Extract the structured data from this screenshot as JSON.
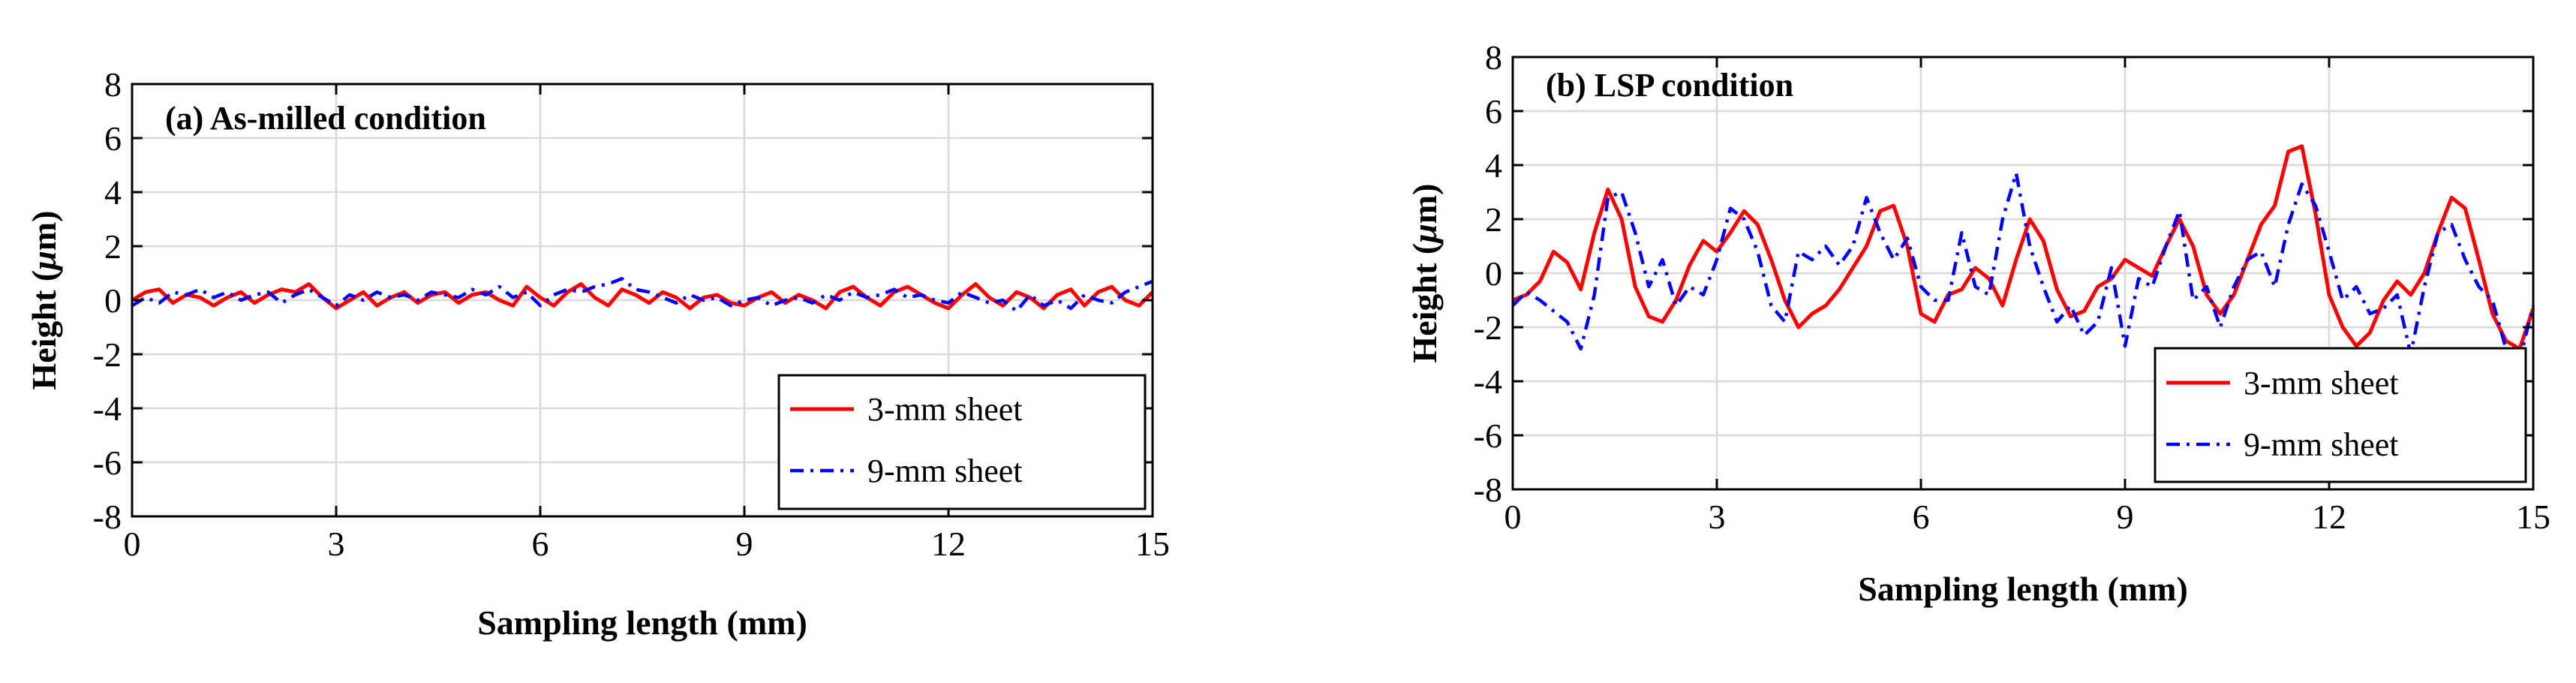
{
  "chart_data": [
    {
      "type": "line",
      "title": "(a) As-milled condition",
      "xlabel": "Sampling length (mm)",
      "ylabel_prefix": "Height (",
      "ylabel_mu": "μ",
      "ylabel_suffix": "m)",
      "xlim": [
        0,
        15
      ],
      "ylim": [
        -8,
        8
      ],
      "xticks": [
        0,
        3,
        6,
        9,
        12,
        15
      ],
      "yticks": [
        -8,
        -6,
        -4,
        -2,
        0,
        2,
        4,
        6,
        8
      ],
      "xtick_labels": [
        "0",
        "3",
        "6",
        "9",
        "12",
        "15"
      ],
      "ytick_labels": [
        "-8",
        "-6",
        "-4",
        "-2",
        "0",
        "2",
        "4",
        "6",
        "8"
      ],
      "grid": true,
      "legend_position": "bottom-right",
      "series": [
        {
          "name": "3-mm sheet",
          "color": "#ff0000",
          "style": "solid",
          "x": [
            0,
            0.2,
            0.4,
            0.6,
            0.8,
            1.0,
            1.2,
            1.4,
            1.6,
            1.8,
            2.0,
            2.2,
            2.4,
            2.6,
            2.8,
            3.0,
            3.2,
            3.4,
            3.6,
            3.8,
            4.0,
            4.2,
            4.4,
            4.6,
            4.8,
            5.0,
            5.2,
            5.4,
            5.6,
            5.8,
            6.0,
            6.2,
            6.4,
            6.6,
            6.8,
            7.0,
            7.2,
            7.4,
            7.6,
            7.8,
            8.0,
            8.2,
            8.4,
            8.6,
            8.8,
            9.0,
            9.2,
            9.4,
            9.6,
            9.8,
            10.0,
            10.2,
            10.4,
            10.6,
            10.8,
            11.0,
            11.2,
            11.4,
            11.6,
            11.8,
            12.0,
            12.2,
            12.4,
            12.6,
            12.8,
            13.0,
            13.2,
            13.4,
            13.6,
            13.8,
            14.0,
            14.2,
            14.4,
            14.6,
            14.8,
            15.0
          ],
          "y": [
            0.0,
            0.3,
            0.4,
            -0.1,
            0.2,
            0.1,
            -0.2,
            0.1,
            0.3,
            -0.1,
            0.2,
            0.4,
            0.3,
            0.6,
            0.1,
            -0.3,
            0.0,
            0.3,
            -0.2,
            0.1,
            0.3,
            -0.1,
            0.2,
            0.3,
            -0.1,
            0.2,
            0.3,
            0.0,
            -0.2,
            0.5,
            0.1,
            -0.2,
            0.3,
            0.6,
            0.1,
            -0.2,
            0.4,
            0.2,
            -0.1,
            0.3,
            0.1,
            -0.3,
            0.1,
            0.2,
            -0.1,
            -0.2,
            0.1,
            0.3,
            -0.1,
            0.2,
            0.0,
            -0.3,
            0.3,
            0.5,
            0.1,
            -0.2,
            0.3,
            0.5,
            0.2,
            -0.1,
            -0.3,
            0.2,
            0.6,
            0.1,
            -0.2,
            0.3,
            0.1,
            -0.3,
            0.2,
            0.4,
            -0.2,
            0.3,
            0.5,
            0.0,
            -0.2,
            0.3
          ]
        },
        {
          "name": "9-mm sheet",
          "color": "#0000ff",
          "style": "dashdot",
          "x": [
            0,
            0.2,
            0.4,
            0.6,
            0.8,
            1.0,
            1.2,
            1.4,
            1.6,
            1.8,
            2.0,
            2.2,
            2.4,
            2.6,
            2.8,
            3.0,
            3.2,
            3.4,
            3.6,
            3.8,
            4.0,
            4.2,
            4.4,
            4.6,
            4.8,
            5.0,
            5.2,
            5.4,
            5.6,
            5.8,
            6.0,
            6.2,
            6.4,
            6.6,
            6.8,
            7.0,
            7.2,
            7.4,
            7.6,
            7.8,
            8.0,
            8.2,
            8.4,
            8.6,
            8.8,
            9.0,
            9.2,
            9.4,
            9.6,
            9.8,
            10.0,
            10.2,
            10.4,
            10.6,
            10.8,
            11.0,
            11.2,
            11.4,
            11.6,
            11.8,
            12.0,
            12.2,
            12.4,
            12.6,
            12.8,
            13.0,
            13.2,
            13.4,
            13.6,
            13.8,
            14.0,
            14.2,
            14.4,
            14.6,
            14.8,
            15.0
          ],
          "y": [
            -0.2,
            0.1,
            -0.1,
            0.3,
            0.2,
            0.4,
            0.1,
            0.3,
            0.0,
            0.2,
            0.3,
            -0.1,
            0.2,
            0.4,
            0.1,
            -0.2,
            0.2,
            0.0,
            0.3,
            0.1,
            0.2,
            0.0,
            0.3,
            0.2,
            0.1,
            0.4,
            0.2,
            0.5,
            0.1,
            0.3,
            -0.2,
            0.2,
            0.4,
            0.3,
            0.5,
            0.6,
            0.8,
            0.4,
            0.3,
            0.1,
            -0.1,
            0.2,
            0.0,
            0.1,
            -0.2,
            0.0,
            0.1,
            -0.2,
            0.0,
            0.1,
            -0.1,
            0.2,
            0.0,
            0.3,
            0.1,
            0.2,
            0.4,
            0.1,
            0.2,
            0.0,
            -0.1,
            0.3,
            0.1,
            -0.1,
            0.0,
            -0.4,
            0.2,
            -0.2,
            0.0,
            -0.3,
            0.2,
            0.0,
            -0.1,
            0.3,
            0.5,
            0.7
          ]
        }
      ]
    },
    {
      "type": "line",
      "title": "(b) LSP condition",
      "xlabel": "Sampling length (mm)",
      "ylabel_prefix": "Height (",
      "ylabel_mu": "μ",
      "ylabel_suffix": "m)",
      "xlim": [
        0,
        15
      ],
      "ylim": [
        -8,
        8
      ],
      "xticks": [
        0,
        3,
        6,
        9,
        12,
        15
      ],
      "yticks": [
        -8,
        -6,
        -4,
        -2,
        0,
        2,
        4,
        6,
        8
      ],
      "xtick_labels": [
        "0",
        "3",
        "6",
        "9",
        "12",
        "15"
      ],
      "ytick_labels": [
        "-8",
        "-6",
        "-4",
        "-2",
        "0",
        "2",
        "4",
        "6",
        "8"
      ],
      "grid": true,
      "legend_position": "bottom-right",
      "series": [
        {
          "name": "3-mm sheet",
          "color": "#ff0000",
          "style": "solid",
          "x": [
            0,
            0.2,
            0.4,
            0.6,
            0.8,
            1.0,
            1.2,
            1.4,
            1.6,
            1.8,
            2.0,
            2.2,
            2.4,
            2.6,
            2.8,
            3.0,
            3.2,
            3.4,
            3.6,
            3.8,
            4.0,
            4.2,
            4.4,
            4.6,
            4.8,
            5.0,
            5.2,
            5.4,
            5.6,
            5.8,
            6.0,
            6.2,
            6.4,
            6.6,
            6.8,
            7.0,
            7.2,
            7.4,
            7.6,
            7.8,
            8.0,
            8.2,
            8.4,
            8.6,
            8.8,
            9.0,
            9.2,
            9.4,
            9.6,
            9.8,
            10.0,
            10.2,
            10.4,
            10.6,
            10.8,
            11.0,
            11.2,
            11.4,
            11.6,
            11.8,
            12.0,
            12.2,
            12.4,
            12.6,
            12.8,
            13.0,
            13.2,
            13.4,
            13.6,
            13.8,
            14.0,
            14.2,
            14.4,
            14.6,
            14.8,
            15.0
          ],
          "y": [
            -1.0,
            -0.8,
            -0.3,
            0.8,
            0.4,
            -0.6,
            1.5,
            3.1,
            2.0,
            -0.5,
            -1.6,
            -1.8,
            -1.0,
            0.3,
            1.2,
            0.8,
            1.5,
            2.3,
            1.8,
            0.5,
            -1.0,
            -2.0,
            -1.5,
            -1.2,
            -0.6,
            0.2,
            1.0,
            2.3,
            2.5,
            1.0,
            -1.5,
            -1.8,
            -0.8,
            -0.6,
            0.2,
            -0.2,
            -1.2,
            0.5,
            2.0,
            1.2,
            -0.6,
            -1.6,
            -1.4,
            -0.5,
            -0.2,
            0.5,
            0.2,
            -0.1,
            1.0,
            2.0,
            1.0,
            -0.8,
            -1.5,
            -0.8,
            0.5,
            1.8,
            2.5,
            4.5,
            4.7,
            2.2,
            -0.8,
            -2.0,
            -2.7,
            -2.2,
            -1.0,
            -0.3,
            -0.8,
            0.0,
            1.5,
            2.8,
            2.4,
            0.5,
            -1.5,
            -2.5,
            -2.8,
            -1.3
          ]
        },
        {
          "name": "9-mm sheet",
          "color": "#0000ff",
          "style": "dashdot",
          "x": [
            0,
            0.2,
            0.4,
            0.6,
            0.8,
            1.0,
            1.2,
            1.4,
            1.6,
            1.8,
            2.0,
            2.2,
            2.4,
            2.6,
            2.8,
            3.0,
            3.2,
            3.4,
            3.6,
            3.8,
            4.0,
            4.2,
            4.4,
            4.6,
            4.8,
            5.0,
            5.2,
            5.4,
            5.6,
            5.8,
            6.0,
            6.2,
            6.4,
            6.6,
            6.8,
            7.0,
            7.2,
            7.4,
            7.6,
            7.8,
            8.0,
            8.2,
            8.4,
            8.6,
            8.8,
            9.0,
            9.2,
            9.4,
            9.6,
            9.8,
            10.0,
            10.2,
            10.4,
            10.6,
            10.8,
            11.0,
            11.2,
            11.4,
            11.6,
            11.8,
            12.0,
            12.2,
            12.4,
            12.6,
            12.8,
            13.0,
            13.2,
            13.4,
            13.6,
            13.8,
            14.0,
            14.2,
            14.4,
            14.6,
            14.8,
            15.0
          ],
          "y": [
            -1.2,
            -0.7,
            -1.0,
            -1.4,
            -1.8,
            -2.8,
            -0.8,
            2.8,
            3.0,
            1.5,
            -0.5,
            0.5,
            -1.2,
            -0.5,
            -0.8,
            0.5,
            2.4,
            2.0,
            0.8,
            -1.2,
            -1.8,
            0.8,
            0.5,
            1.0,
            0.3,
            1.0,
            2.8,
            1.5,
            0.5,
            1.3,
            -0.5,
            -1.0,
            -1.0,
            1.5,
            -0.5,
            -0.8,
            2.0,
            3.7,
            1.0,
            -0.5,
            -1.8,
            -1.2,
            -2.3,
            -1.8,
            0.2,
            -2.7,
            -0.2,
            -0.5,
            1.0,
            2.3,
            -1.0,
            -0.5,
            -2.0,
            -0.5,
            0.5,
            0.8,
            -0.5,
            1.8,
            3.3,
            2.5,
            0.8,
            -1.0,
            -0.5,
            -1.5,
            -1.3,
            -0.8,
            -3.0,
            -0.5,
            1.5,
            1.8,
            0.5,
            -0.5,
            -1.0,
            -2.8,
            -3.2,
            -1.2
          ]
        }
      ]
    }
  ]
}
